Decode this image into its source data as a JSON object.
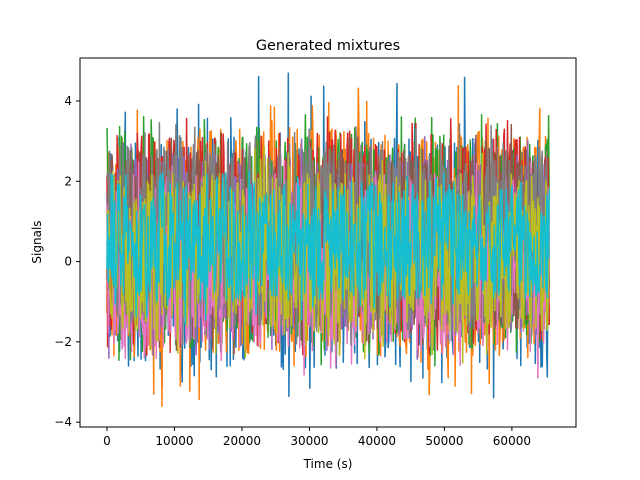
{
  "chart_data": {
    "type": "line",
    "title": "Generated mixtures",
    "xlabel": "Time (s)",
    "ylabel": "Signals",
    "xlim": [
      -4000,
      69500
    ],
    "ylim": [
      -4.12,
      5.07
    ],
    "x_range": [
      0,
      65535
    ],
    "x_ticks": [
      0,
      10000,
      20000,
      30000,
      40000,
      50000,
      60000
    ],
    "x_tick_labels": [
      "0",
      "10000",
      "20000",
      "30000",
      "40000",
      "50000",
      "60000"
    ],
    "y_ticks": [
      -4,
      -2,
      0,
      2,
      4
    ],
    "y_tick_labels": [
      "−4",
      "−2",
      "0",
      "2",
      "4"
    ],
    "grid": false,
    "legend": "none",
    "series": [
      {
        "color": "#1f77b4",
        "band_low": -2.7,
        "band_high": 3.1,
        "extreme_min": -3.4,
        "extreme_max": 4.7
      },
      {
        "color": "#ff7f0e",
        "band_low": -2.4,
        "band_high": 3.3,
        "extreme_min": -3.7,
        "extreme_max": 4.6
      },
      {
        "color": "#2ca02c",
        "band_low": -2.1,
        "band_high": 3.1,
        "extreme_min": -2.6,
        "extreme_max": 3.7
      },
      {
        "color": "#d62728",
        "band_low": -1.8,
        "band_high": 3.2,
        "extreme_min": -2.4,
        "extreme_max": 3.7
      },
      {
        "color": "#9467bd",
        "band_low": -1.9,
        "band_high": 2.7,
        "extreme_min": -2.5,
        "extreme_max": 3.3
      },
      {
        "color": "#8c564b",
        "band_low": -1.7,
        "band_high": 2.8,
        "extreme_min": -2.3,
        "extreme_max": 3.5
      },
      {
        "color": "#e377c2",
        "band_low": -2.2,
        "band_high": 2.2,
        "extreme_min": -2.9,
        "extreme_max": 2.6
      },
      {
        "color": "#7f7f7f",
        "band_low": -1.6,
        "band_high": 3.0,
        "extreme_min": -2.1,
        "extreme_max": 3.6
      },
      {
        "color": "#bcbd22",
        "band_low": -1.8,
        "band_high": 2.2,
        "extreme_min": -2.6,
        "extreme_max": 2.9
      },
      {
        "color": "#17becf",
        "band_low": -1.0,
        "band_high": 2.0,
        "extreme_min": -1.6,
        "extreme_max": 2.3
      }
    ]
  }
}
